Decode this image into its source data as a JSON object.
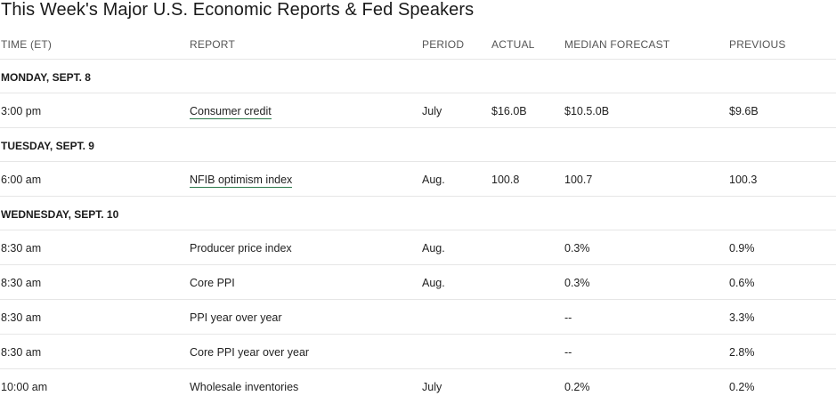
{
  "title": "This Week's Major U.S. Economic Reports & Fed Speakers",
  "headers": {
    "time": "TIME (ET)",
    "report": "REPORT",
    "period": "PERIOD",
    "actual": "ACTUAL",
    "forecast": "MEDIAN FORECAST",
    "previous": "PREVIOUS"
  },
  "accent_color": "#2b7a4b",
  "days": [
    {
      "label": "MONDAY, SEPT. 8",
      "rows": [
        {
          "time": "3:00 pm",
          "report": "Consumer credit",
          "link": true,
          "period": "July",
          "actual": "$16.0B",
          "forecast": "$10.5.0B",
          "previous": "$9.6B"
        }
      ]
    },
    {
      "label": "TUESDAY, SEPT. 9",
      "rows": [
        {
          "time": "6:00 am",
          "report": "NFIB optimism index",
          "link": true,
          "period": "Aug.",
          "actual": "100.8",
          "forecast": "100.7",
          "previous": "100.3"
        }
      ]
    },
    {
      "label": "WEDNESDAY, SEPT. 10",
      "rows": [
        {
          "time": "8:30 am",
          "report": "Producer price index",
          "link": false,
          "period": "Aug.",
          "actual": "",
          "forecast": "0.3%",
          "previous": "0.9%"
        },
        {
          "time": "8:30 am",
          "report": "Core PPI",
          "link": false,
          "period": "Aug.",
          "actual": "",
          "forecast": "0.3%",
          "previous": "0.6%"
        },
        {
          "time": "8:30 am",
          "report": "PPI year over year",
          "link": false,
          "period": "",
          "actual": "",
          "forecast": "--",
          "previous": "3.3%"
        },
        {
          "time": "8:30 am",
          "report": "Core PPI year over year",
          "link": false,
          "period": "",
          "actual": "",
          "forecast": "--",
          "previous": "2.8%"
        },
        {
          "time": "10:00 am",
          "report": "Wholesale inventories",
          "link": false,
          "period": "July",
          "actual": "",
          "forecast": "0.2%",
          "previous": "0.2%"
        }
      ]
    }
  ]
}
